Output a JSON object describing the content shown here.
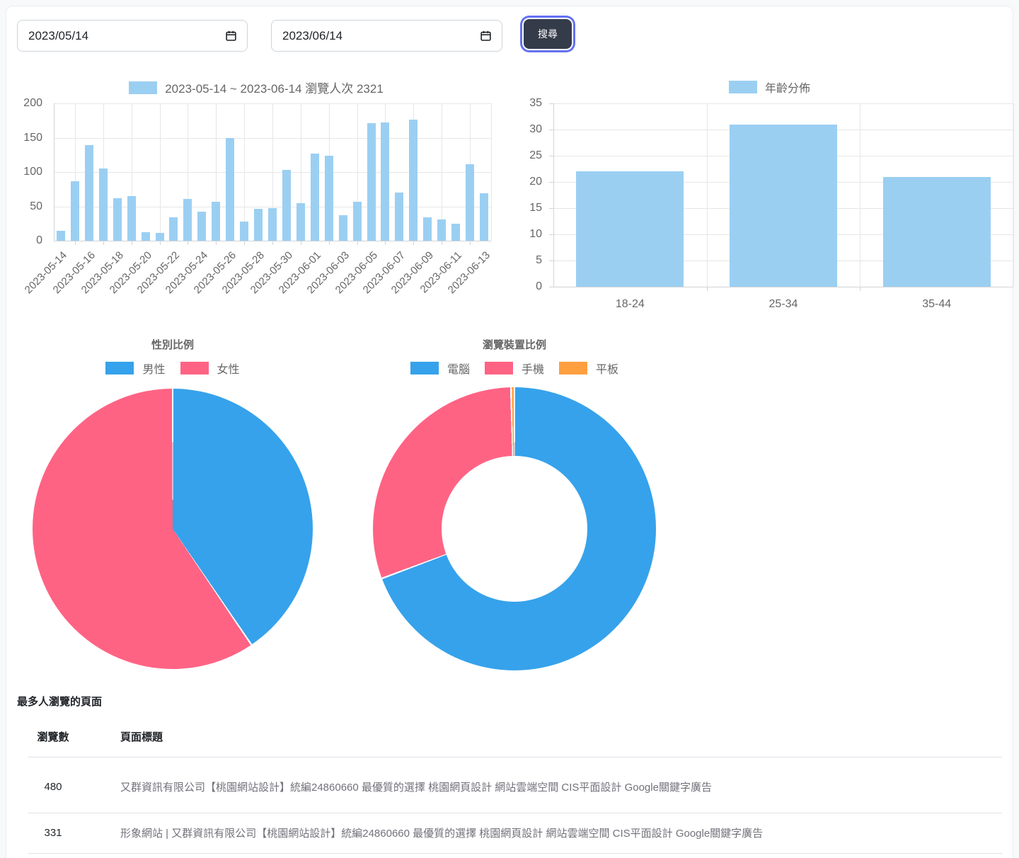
{
  "controls": {
    "start_date": "2023/05/14",
    "end_date": "2023/06/14",
    "search_label": "搜尋"
  },
  "colors": {
    "bar_fill": "#9bcff2",
    "blue": "#36a2eb",
    "pink": "#ff6384",
    "orange": "#ff9f40",
    "text_muted": "#666666",
    "grid": "#e6e6e6",
    "axis": "#cfd4d9",
    "button_bg": "#343b49",
    "focus_ring": "#6371f1"
  },
  "chart_data": [
    {
      "id": "daily-views",
      "type": "bar",
      "title": "2023-05-14 ~ 2023-06-14 瀏覽人次 2321",
      "categories": [
        "2023-05-14",
        "2023-05-15",
        "2023-05-16",
        "2023-05-17",
        "2023-05-18",
        "2023-05-19",
        "2023-05-20",
        "2023-05-21",
        "2023-05-22",
        "2023-05-23",
        "2023-05-24",
        "2023-05-25",
        "2023-05-26",
        "2023-05-27",
        "2023-05-28",
        "2023-05-29",
        "2023-05-30",
        "2023-05-31",
        "2023-06-01",
        "2023-06-02",
        "2023-06-03",
        "2023-06-04",
        "2023-06-05",
        "2023-06-06",
        "2023-06-07",
        "2023-06-08",
        "2023-06-09",
        "2023-06-10",
        "2023-06-11",
        "2023-06-12",
        "2023-06-13"
      ],
      "values": [
        14,
        87,
        139,
        105,
        62,
        65,
        12,
        11,
        34,
        61,
        42,
        57,
        149,
        28,
        46,
        47,
        103,
        55,
        127,
        124,
        37,
        57,
        171,
        172,
        70,
        176,
        34,
        31,
        25,
        111,
        69
      ],
      "total_views": 2321,
      "ymax": 200,
      "ytick_step": 50,
      "label_step": 2,
      "legend_position": "top",
      "xlabel": "",
      "ylabel": ""
    },
    {
      "id": "age",
      "type": "bar",
      "title": "年齡分佈",
      "categories": [
        "18-24",
        "25-34",
        "35-44"
      ],
      "values": [
        22,
        31,
        21
      ],
      "ymax": 35,
      "ytick_step": 5,
      "label_step": 1,
      "legend_position": "top",
      "xlabel": "",
      "ylabel": ""
    },
    {
      "id": "gender",
      "type": "pie",
      "title": "性別比例",
      "labels": [
        "男性",
        "女性"
      ],
      "values_percent": [
        40.5,
        59.5
      ],
      "colors": [
        "#36a2eb",
        "#ff6384"
      ],
      "legend_position": "top"
    },
    {
      "id": "device",
      "type": "doughnut",
      "title": "瀏覽裝置比例",
      "labels": [
        "電腦",
        "手機",
        "平板"
      ],
      "values_percent": [
        69.3,
        30.3,
        0.4
      ],
      "colors": [
        "#36a2eb",
        "#ff6384",
        "#ff9f40"
      ],
      "legend_position": "top"
    }
  ],
  "table": {
    "heading": "最多人瀏覽的頁面",
    "columns": [
      "瀏覽數",
      "頁面標題"
    ],
    "rows": [
      {
        "views": "480",
        "title": "又群資訊有限公司【桃園網站設計】統編24860660 最優質的選擇 桃園網頁設計 網站雲端空間 CIS平面設計 Google關鍵字廣告"
      },
      {
        "views": "331",
        "title": "形象網站 | 又群資訊有限公司【桃園網站設計】統編24860660 最優質的選擇 桃園網頁設計 網站雲端空間 CIS平面設計 Google關鍵字廣告"
      }
    ]
  }
}
